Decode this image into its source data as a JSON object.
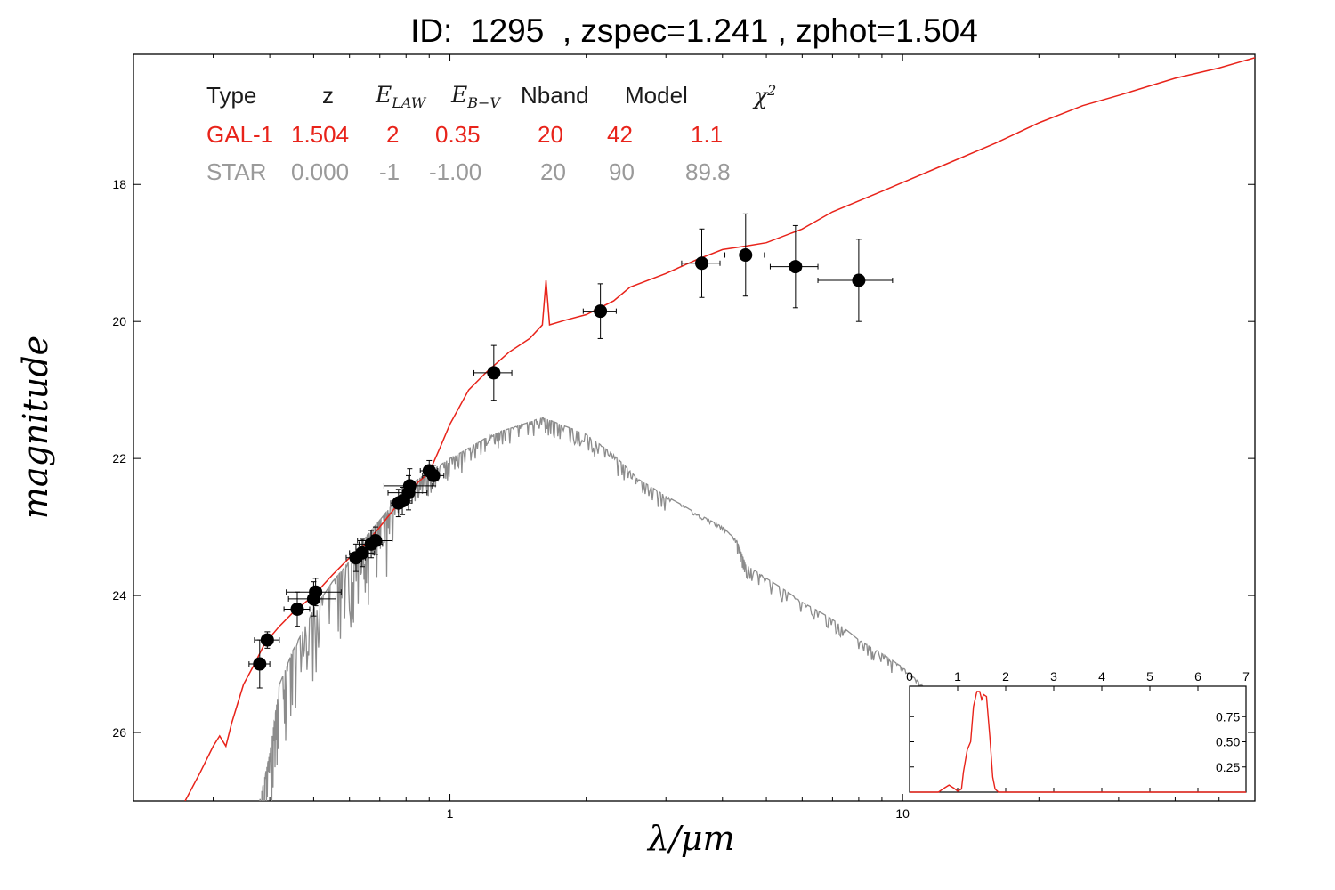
{
  "title": "ID:  1295  , zspec=1.241 , zphot=1.504",
  "fit_table": {
    "headers": [
      "Type",
      "z",
      "E",
      "E",
      "Nband",
      "Model",
      "χ"
    ],
    "header_subscripts": {
      "elaw": "LAW",
      "ebv": "B−V",
      "chi_sup": "2"
    },
    "rows": [
      {
        "type": "GAL-1",
        "z": "1.504",
        "elaw": "2",
        "ebv": "0.35",
        "nband": "20",
        "model": "42",
        "chi2": "1.1"
      },
      {
        "type": "STAR",
        "z": "0.000",
        "elaw": "-1",
        "ebv": "-1.00",
        "nband": "20",
        "model": "90",
        "chi2": "89.8"
      }
    ]
  },
  "chart_data": [
    {
      "type": "scatter",
      "xlabel": "λ/μm",
      "ylabel": "magnitude",
      "xscale": "log",
      "xlim": [
        0.2,
        60
      ],
      "ylim": [
        27.0,
        16.1
      ],
      "x_ticks": [
        {
          "value": 1,
          "label": "1"
        },
        {
          "value": 10,
          "label": "10"
        }
      ],
      "y_ticks": [
        {
          "value": 18,
          "label": "18"
        },
        {
          "value": 20,
          "label": "20"
        },
        {
          "value": 22,
          "label": "22"
        },
        {
          "value": 24,
          "label": "24"
        },
        {
          "value": 26,
          "label": "26"
        }
      ],
      "colors": {
        "galaxy": "#e8231a",
        "star": "#8c8c8c",
        "points": "#000000"
      },
      "photometry": [
        {
          "x": 0.38,
          "y": 25.0,
          "xerr": 0.02,
          "yerr": 0.35
        },
        {
          "x": 0.395,
          "y": 24.65,
          "xerr": 0.025,
          "yerr": 0.12
        },
        {
          "x": 0.46,
          "y": 24.2,
          "xerr": 0.03,
          "yerr": 0.25
        },
        {
          "x": 0.5,
          "y": 24.05,
          "xerr": 0.06,
          "yerr": 0.25
        },
        {
          "x": 0.505,
          "y": 23.95,
          "xerr": 0.07,
          "yerr": 0.2
        },
        {
          "x": 0.62,
          "y": 23.45,
          "xerr": 0.03,
          "yerr": 0.2
        },
        {
          "x": 0.64,
          "y": 23.38,
          "xerr": 0.04,
          "yerr": 0.2
        },
        {
          "x": 0.67,
          "y": 23.25,
          "xerr": 0.04,
          "yerr": 0.2
        },
        {
          "x": 0.685,
          "y": 23.2,
          "xerr": 0.06,
          "yerr": 0.2
        },
        {
          "x": 0.77,
          "y": 22.65,
          "xerr": 0.03,
          "yerr": 0.2
        },
        {
          "x": 0.785,
          "y": 22.62,
          "xerr": 0.04,
          "yerr": 0.2
        },
        {
          "x": 0.81,
          "y": 22.5,
          "xerr": 0.08,
          "yerr": 0.25
        },
        {
          "x": 0.815,
          "y": 22.4,
          "xerr": 0.1,
          "yerr": 0.25
        },
        {
          "x": 0.9,
          "y": 22.18,
          "xerr": 0.04,
          "yerr": 0.15
        },
        {
          "x": 0.92,
          "y": 22.25,
          "xerr": 0.05,
          "yerr": 0.15
        },
        {
          "x": 1.25,
          "y": 20.75,
          "xerr": 0.12,
          "yerr": 0.4
        },
        {
          "x": 2.15,
          "y": 19.85,
          "xerr": 0.18,
          "yerr": 0.4
        },
        {
          "x": 3.6,
          "y": 19.15,
          "xerr": 0.35,
          "yerr": 0.5
        },
        {
          "x": 4.5,
          "y": 19.03,
          "xerr": 0.45,
          "yerr": 0.6
        },
        {
          "x": 5.8,
          "y": 19.2,
          "xerr": 0.7,
          "yerr": 0.6
        },
        {
          "x": 8.0,
          "y": 19.4,
          "xerr": 1.5,
          "yerr": 0.6
        }
      ],
      "galaxy_sed": [
        [
          0.26,
          27.0
        ],
        [
          0.28,
          26.6
        ],
        [
          0.3,
          26.2
        ],
        [
          0.31,
          26.05
        ],
        [
          0.32,
          26.2
        ],
        [
          0.33,
          25.85
        ],
        [
          0.35,
          25.3
        ],
        [
          0.37,
          25.0
        ],
        [
          0.39,
          24.7
        ],
        [
          0.42,
          24.45
        ],
        [
          0.45,
          24.25
        ],
        [
          0.5,
          24.0
        ],
        [
          0.55,
          23.7
        ],
        [
          0.6,
          23.45
        ],
        [
          0.65,
          23.25
        ],
        [
          0.7,
          23.0
        ],
        [
          0.75,
          22.75
        ],
        [
          0.8,
          22.55
        ],
        [
          0.85,
          22.35
        ],
        [
          0.9,
          22.2
        ],
        [
          0.95,
          21.85
        ],
        [
          1.0,
          21.5
        ],
        [
          1.1,
          21.0
        ],
        [
          1.2,
          20.75
        ],
        [
          1.35,
          20.45
        ],
        [
          1.5,
          20.25
        ],
        [
          1.6,
          20.05
        ],
        [
          1.63,
          19.4
        ],
        [
          1.66,
          20.05
        ],
        [
          1.8,
          19.98
        ],
        [
          2.0,
          19.9
        ],
        [
          2.3,
          19.7
        ],
        [
          2.5,
          19.5
        ],
        [
          3.0,
          19.3
        ],
        [
          3.5,
          19.1
        ],
        [
          4.0,
          18.95
        ],
        [
          4.5,
          18.9
        ],
        [
          5.0,
          18.85
        ],
        [
          6.0,
          18.65
        ],
        [
          7.0,
          18.4
        ],
        [
          9.0,
          18.1
        ],
        [
          12.0,
          17.75
        ],
        [
          16.0,
          17.4
        ],
        [
          20.0,
          17.1
        ],
        [
          25.0,
          16.85
        ],
        [
          30.0,
          16.7
        ],
        [
          40.0,
          16.45
        ],
        [
          50.0,
          16.3
        ],
        [
          60.0,
          16.15
        ]
      ],
      "star_sed": [
        [
          0.38,
          27.0
        ],
        [
          0.4,
          26.3
        ],
        [
          0.42,
          25.3
        ],
        [
          0.45,
          24.8
        ],
        [
          0.5,
          24.2
        ],
        [
          0.55,
          23.8
        ],
        [
          0.6,
          23.5
        ],
        [
          0.65,
          23.15
        ],
        [
          0.7,
          22.9
        ],
        [
          0.75,
          22.65
        ],
        [
          0.8,
          22.45
        ],
        [
          0.85,
          22.3
        ],
        [
          0.9,
          22.2
        ],
        [
          1.0,
          22.0
        ],
        [
          1.1,
          21.85
        ],
        [
          1.2,
          21.7
        ],
        [
          1.3,
          21.6
        ],
        [
          1.45,
          21.5
        ],
        [
          1.6,
          21.4
        ],
        [
          1.75,
          21.5
        ],
        [
          2.0,
          21.65
        ],
        [
          2.3,
          21.95
        ],
        [
          2.6,
          22.3
        ],
        [
          3.0,
          22.55
        ],
        [
          3.5,
          22.8
        ],
        [
          4.0,
          23.0
        ],
        [
          4.3,
          23.2
        ],
        [
          4.5,
          23.55
        ],
        [
          5.0,
          23.75
        ],
        [
          6.0,
          24.1
        ],
        [
          7.0,
          24.35
        ],
        [
          8.0,
          24.65
        ],
        [
          9.0,
          24.85
        ],
        [
          10.0,
          25.05
        ],
        [
          11.0,
          25.3
        ],
        [
          11.5,
          25.45
        ]
      ]
    },
    {
      "type": "line",
      "xlabel": "",
      "ylabel": "",
      "xlim": [
        0,
        7
      ],
      "ylim": [
        0,
        1.0
      ],
      "x_ticks": [
        0,
        1,
        2,
        3,
        4,
        5,
        6,
        7
      ],
      "y_ticks": [
        {
          "value": 0.25,
          "label": "0.25"
        },
        {
          "value": 0.5,
          "label": "0.50"
        },
        {
          "value": 0.75,
          "label": "0.75"
        }
      ],
      "colors": {
        "line": "#e8231a"
      },
      "pdz": [
        [
          0,
          0.0
        ],
        [
          0.6,
          0.0
        ],
        [
          0.72,
          0.04
        ],
        [
          0.82,
          0.07
        ],
        [
          0.92,
          0.04
        ],
        [
          1.0,
          0.01
        ],
        [
          1.08,
          0.03
        ],
        [
          1.12,
          0.2
        ],
        [
          1.2,
          0.42
        ],
        [
          1.27,
          0.5
        ],
        [
          1.33,
          0.85
        ],
        [
          1.4,
          1.0
        ],
        [
          1.46,
          1.0
        ],
        [
          1.5,
          0.92
        ],
        [
          1.54,
          0.97
        ],
        [
          1.6,
          0.95
        ],
        [
          1.67,
          0.55
        ],
        [
          1.73,
          0.15
        ],
        [
          1.78,
          0.03
        ],
        [
          1.85,
          0.0
        ],
        [
          2.0,
          0.0
        ],
        [
          7.0,
          0.0
        ]
      ]
    }
  ]
}
